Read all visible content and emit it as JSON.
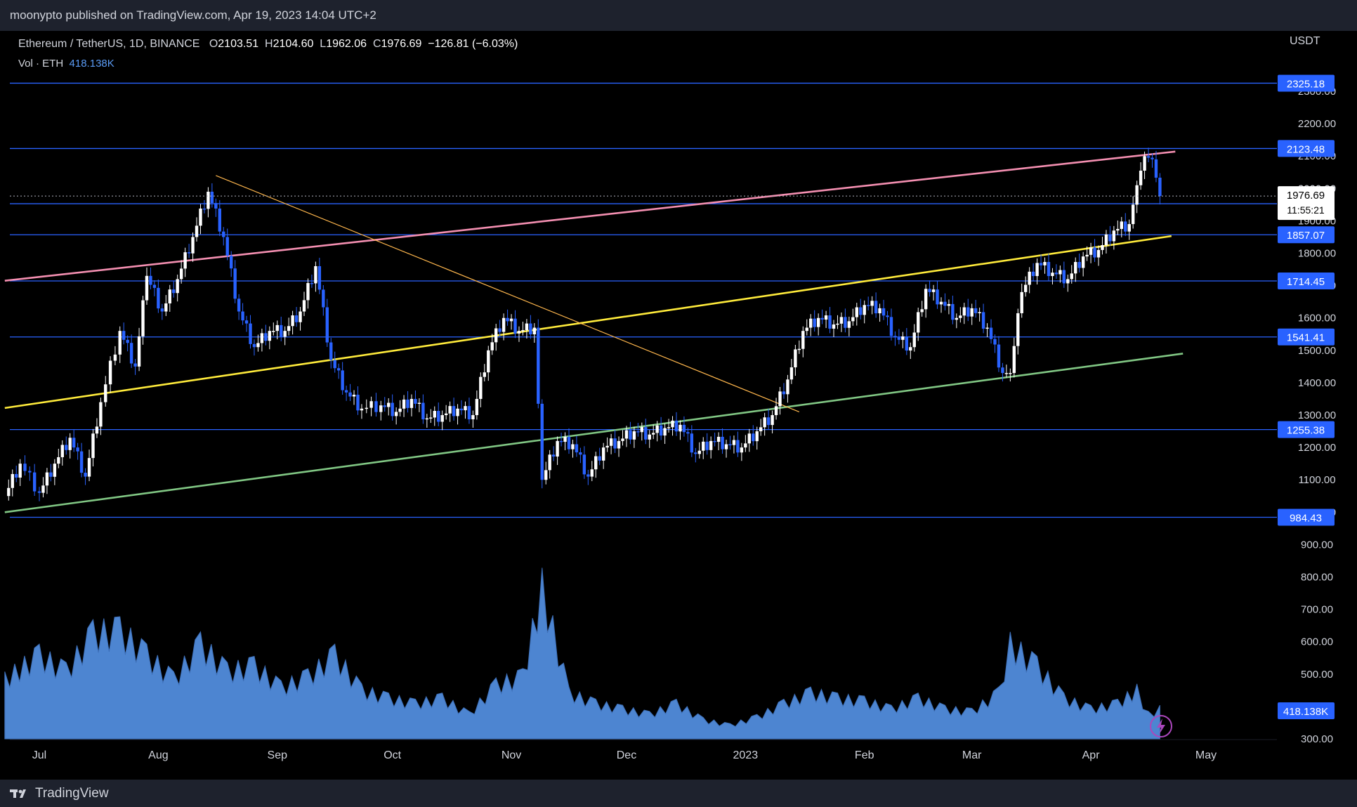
{
  "header": {
    "published_line": "moonypto published on TradingView.com, Apr 19, 2023 14:04 UTC+2"
  },
  "legend": {
    "symbol": "Ethereum / TetherUS, 1D, BINANCE",
    "open_label": "O",
    "open": "2103.51",
    "high_label": "H",
    "high": "2104.60",
    "low_label": "L",
    "low": "1962.06",
    "close_label": "C",
    "close": "1976.69",
    "change": "−126.81 (−6.03%)",
    "vol_label": "Vol · ETH",
    "vol_value": "418.138K"
  },
  "footer": {
    "brand": "TradingView"
  },
  "colors": {
    "background": "#000000",
    "bar": "#ffffff",
    "bar_alt": "#2962ff",
    "hline": "#2962ff",
    "label_bg": "#2962ff",
    "pink": "#f48fb1",
    "yellow": "#ffeb3b",
    "green": "#81c784",
    "orange": "#ffb74d",
    "volume": "#5b9cf6",
    "volume_dark": "#3d6fb8"
  },
  "chart_data": {
    "type": "candlestick",
    "title": "Ethereum / TetherUS, 1D, BINANCE",
    "currency": "USDT",
    "ylim": [
      250,
      2400
    ],
    "y_ticks": [
      "2300.00",
      "2200.00",
      "2100.00",
      "2000.00",
      "1900.00",
      "1800.00",
      "1700.00",
      "1600.00",
      "1500.00",
      "1400.00",
      "1300.00",
      "1200.00",
      "1100.00",
      "1000.00",
      "900.00",
      "800.00",
      "700.00",
      "600.00",
      "500.00",
      "400.00",
      "300.00"
    ],
    "x_labels": [
      {
        "label": "Jul",
        "date": "2022-07-01"
      },
      {
        "label": "Aug",
        "date": "2022-08-01"
      },
      {
        "label": "Sep",
        "date": "2022-09-01"
      },
      {
        "label": "Oct",
        "date": "2022-10-01"
      },
      {
        "label": "Nov",
        "date": "2022-11-01"
      },
      {
        "label": "Dec",
        "date": "2022-12-01"
      },
      {
        "label": "2023",
        "date": "2023-01-01"
      },
      {
        "label": "Feb",
        "date": "2023-02-01"
      },
      {
        "label": "Mar",
        "date": "2023-03-01"
      },
      {
        "label": "Apr",
        "date": "2023-04-01"
      },
      {
        "label": "May",
        "date": "2023-05-01"
      }
    ],
    "price_levels": [
      {
        "value": 2325.18,
        "label": "2325.18"
      },
      {
        "value": 2123.48,
        "label": "2123.48"
      },
      {
        "value": 1952.88,
        "label": "1952.88"
      },
      {
        "value": 1857.07,
        "label": "1857.07"
      },
      {
        "value": 1714.45,
        "label": "1714.45"
      },
      {
        "value": 1541.41,
        "label": "1541.41"
      },
      {
        "value": 1255.38,
        "label": "1255.38"
      },
      {
        "value": 984.43,
        "label": "984.43"
      }
    ],
    "last_price": {
      "value": 1976.69,
      "label": "1976.69",
      "countdown": "11:55:21"
    },
    "volume_label": "418.138K",
    "trendlines": [
      {
        "name": "pink",
        "from": {
          "date": "2022-06-22",
          "price": 1715
        },
        "to": {
          "date": "2023-04-23",
          "price": 2114
        }
      },
      {
        "name": "yellow",
        "from": {
          "date": "2022-06-22",
          "price": 1322
        },
        "to": {
          "date": "2023-04-22",
          "price": 1853
        }
      },
      {
        "name": "green",
        "from": {
          "date": "2022-06-22",
          "price": 1000
        },
        "to": {
          "date": "2023-04-25",
          "price": 1490
        }
      },
      {
        "name": "orange",
        "from": {
          "date": "2022-08-16",
          "price": 2040
        },
        "to": {
          "date": "2023-01-15",
          "price": 1310
        }
      }
    ],
    "closes": [
      {
        "date": "2022-06-22",
        "close": 1050
      },
      {
        "date": "2022-06-26",
        "close": 1150
      },
      {
        "date": "2022-07-01",
        "close": 1060
      },
      {
        "date": "2022-07-05",
        "close": 1150
      },
      {
        "date": "2022-07-09",
        "close": 1230
      },
      {
        "date": "2022-07-13",
        "close": 1110
      },
      {
        "date": "2022-07-17",
        "close": 1340
      },
      {
        "date": "2022-07-22",
        "close": 1560
      },
      {
        "date": "2022-07-26",
        "close": 1450
      },
      {
        "date": "2022-07-29",
        "close": 1730
      },
      {
        "date": "2022-08-02",
        "close": 1620
      },
      {
        "date": "2022-08-06",
        "close": 1720
      },
      {
        "date": "2022-08-10",
        "close": 1850
      },
      {
        "date": "2022-08-14",
        "close": 1990
      },
      {
        "date": "2022-08-18",
        "close": 1850
      },
      {
        "date": "2022-08-22",
        "close": 1620
      },
      {
        "date": "2022-08-26",
        "close": 1510
      },
      {
        "date": "2022-08-30",
        "close": 1560
      },
      {
        "date": "2022-09-03",
        "close": 1560
      },
      {
        "date": "2022-09-07",
        "close": 1620
      },
      {
        "date": "2022-09-11",
        "close": 1760
      },
      {
        "date": "2022-09-15",
        "close": 1470
      },
      {
        "date": "2022-09-19",
        "close": 1370
      },
      {
        "date": "2022-09-23",
        "close": 1320
      },
      {
        "date": "2022-09-28",
        "close": 1330
      },
      {
        "date": "2022-10-02",
        "close": 1310
      },
      {
        "date": "2022-10-06",
        "close": 1350
      },
      {
        "date": "2022-10-10",
        "close": 1290
      },
      {
        "date": "2022-10-14",
        "close": 1300
      },
      {
        "date": "2022-10-18",
        "close": 1320
      },
      {
        "date": "2022-10-22",
        "close": 1300
      },
      {
        "date": "2022-10-26",
        "close": 1500
      },
      {
        "date": "2022-10-30",
        "close": 1600
      },
      {
        "date": "2022-11-03",
        "close": 1560
      },
      {
        "date": "2022-11-07",
        "close": 1570
      },
      {
        "date": "2022-11-09",
        "close": 1100
      },
      {
        "date": "2022-11-13",
        "close": 1220
      },
      {
        "date": "2022-11-17",
        "close": 1210
      },
      {
        "date": "2022-11-21",
        "close": 1110
      },
      {
        "date": "2022-11-25",
        "close": 1200
      },
      {
        "date": "2022-11-29",
        "close": 1220
      },
      {
        "date": "2022-12-03",
        "close": 1250
      },
      {
        "date": "2022-12-07",
        "close": 1240
      },
      {
        "date": "2022-12-11",
        "close": 1260
      },
      {
        "date": "2022-12-15",
        "close": 1270
      },
      {
        "date": "2022-12-19",
        "close": 1180
      },
      {
        "date": "2022-12-23",
        "close": 1220
      },
      {
        "date": "2022-12-27",
        "close": 1210
      },
      {
        "date": "2022-12-31",
        "close": 1200
      },
      {
        "date": "2023-01-04",
        "close": 1250
      },
      {
        "date": "2023-01-08",
        "close": 1300
      },
      {
        "date": "2023-01-12",
        "close": 1410
      },
      {
        "date": "2023-01-16",
        "close": 1560
      },
      {
        "date": "2023-01-20",
        "close": 1600
      },
      {
        "date": "2023-01-24",
        "close": 1580
      },
      {
        "date": "2023-01-28",
        "close": 1590
      },
      {
        "date": "2023-02-01",
        "close": 1640
      },
      {
        "date": "2023-02-05",
        "close": 1630
      },
      {
        "date": "2023-02-09",
        "close": 1540
      },
      {
        "date": "2023-02-13",
        "close": 1510
      },
      {
        "date": "2023-02-17",
        "close": 1690
      },
      {
        "date": "2023-02-21",
        "close": 1650
      },
      {
        "date": "2023-02-25",
        "close": 1600
      },
      {
        "date": "2023-03-01",
        "close": 1630
      },
      {
        "date": "2023-03-05",
        "close": 1570
      },
      {
        "date": "2023-03-09",
        "close": 1430
      },
      {
        "date": "2023-03-11",
        "close": 1430
      },
      {
        "date": "2023-03-14",
        "close": 1680
      },
      {
        "date": "2023-03-18",
        "close": 1770
      },
      {
        "date": "2023-03-22",
        "close": 1740
      },
      {
        "date": "2023-03-26",
        "close": 1720
      },
      {
        "date": "2023-03-30",
        "close": 1790
      },
      {
        "date": "2023-04-03",
        "close": 1810
      },
      {
        "date": "2023-04-07",
        "close": 1870
      },
      {
        "date": "2023-04-11",
        "close": 1890
      },
      {
        "date": "2023-04-13",
        "close": 2010
      },
      {
        "date": "2023-04-15",
        "close": 2100
      },
      {
        "date": "2023-04-17",
        "close": 2090
      },
      {
        "date": "2023-04-19",
        "close": 1976.69
      }
    ],
    "volume": [
      {
        "date": "2022-06-22",
        "v": 470
      },
      {
        "date": "2022-07-01",
        "v": 560
      },
      {
        "date": "2022-07-08",
        "v": 500
      },
      {
        "date": "2022-07-15",
        "v": 640
      },
      {
        "date": "2022-07-22",
        "v": 650
      },
      {
        "date": "2022-07-29",
        "v": 560
      },
      {
        "date": "2022-08-05",
        "v": 470
      },
      {
        "date": "2022-08-12",
        "v": 600
      },
      {
        "date": "2022-08-19",
        "v": 500
      },
      {
        "date": "2022-08-26",
        "v": 520
      },
      {
        "date": "2022-09-02",
        "v": 440
      },
      {
        "date": "2022-09-09",
        "v": 480
      },
      {
        "date": "2022-09-16",
        "v": 560
      },
      {
        "date": "2022-09-23",
        "v": 430
      },
      {
        "date": "2022-09-30",
        "v": 400
      },
      {
        "date": "2022-10-07",
        "v": 380
      },
      {
        "date": "2022-10-14",
        "v": 400
      },
      {
        "date": "2022-10-21",
        "v": 340
      },
      {
        "date": "2022-10-28",
        "v": 450
      },
      {
        "date": "2022-11-04",
        "v": 480
      },
      {
        "date": "2022-11-09",
        "v": 810
      },
      {
        "date": "2022-11-16",
        "v": 420
      },
      {
        "date": "2022-11-23",
        "v": 380
      },
      {
        "date": "2022-11-30",
        "v": 360
      },
      {
        "date": "2022-12-07",
        "v": 340
      },
      {
        "date": "2022-12-14",
        "v": 380
      },
      {
        "date": "2022-12-21",
        "v": 320
      },
      {
        "date": "2022-12-28",
        "v": 300
      },
      {
        "date": "2023-01-04",
        "v": 330
      },
      {
        "date": "2023-01-11",
        "v": 380
      },
      {
        "date": "2023-01-18",
        "v": 420
      },
      {
        "date": "2023-01-25",
        "v": 400
      },
      {
        "date": "2023-02-01",
        "v": 390
      },
      {
        "date": "2023-02-08",
        "v": 360
      },
      {
        "date": "2023-02-15",
        "v": 400
      },
      {
        "date": "2023-02-22",
        "v": 360
      },
      {
        "date": "2023-03-01",
        "v": 350
      },
      {
        "date": "2023-03-08",
        "v": 420
      },
      {
        "date": "2023-03-11",
        "v": 600
      },
      {
        "date": "2023-03-18",
        "v": 520
      },
      {
        "date": "2023-03-25",
        "v": 400
      },
      {
        "date": "2023-04-01",
        "v": 360
      },
      {
        "date": "2023-04-08",
        "v": 380
      },
      {
        "date": "2023-04-13",
        "v": 430
      },
      {
        "date": "2023-04-16",
        "v": 340
      },
      {
        "date": "2023-04-19",
        "v": 360
      }
    ]
  }
}
